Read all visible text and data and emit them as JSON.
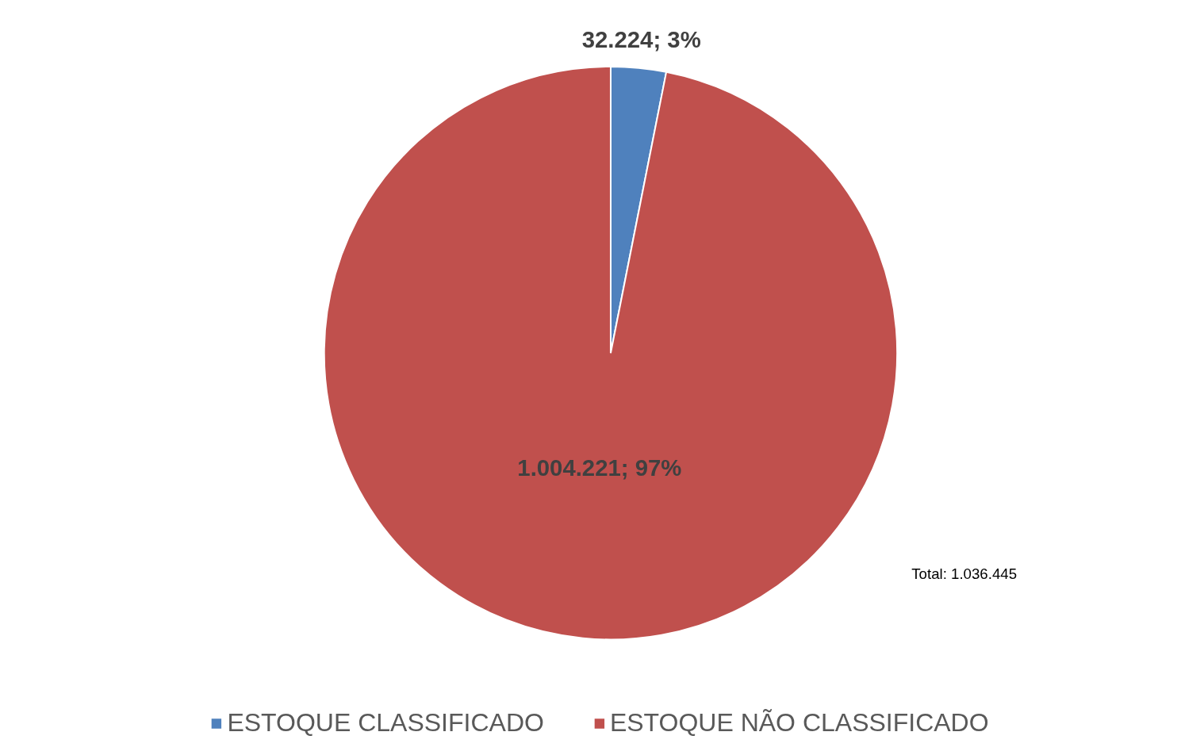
{
  "chart_data": {
    "type": "pie",
    "categories": [
      "ESTOQUE CLASSIFICADO",
      "ESTOQUE NÃO CLASSIFICADO"
    ],
    "values": [
      32224,
      1004221
    ],
    "colors": [
      "#4f81bd",
      "#c0504d"
    ],
    "value_labels": [
      "32.224; 3%",
      "1.004.221; 97%"
    ],
    "annotations": [
      "Total: 1.036.445"
    ],
    "legend": "bottom"
  }
}
